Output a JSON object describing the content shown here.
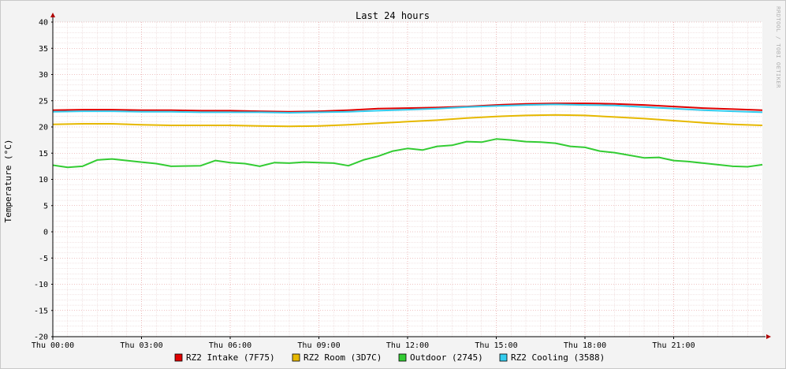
{
  "chart_data": {
    "type": "line",
    "title": "Last 24 hours",
    "ylabel": "Temperature (°C)",
    "watermark": "RRDTOOL / TOBI OETIKER",
    "ylim": [
      -20,
      40
    ],
    "yticks": [
      40,
      35,
      30,
      25,
      20,
      15,
      10,
      5,
      0,
      -5,
      -10,
      -15,
      -20
    ],
    "xlim": [
      0,
      24
    ],
    "xticks": [
      {
        "x": 0,
        "label": "Thu 00:00"
      },
      {
        "x": 3,
        "label": "Thu 03:00"
      },
      {
        "x": 6,
        "label": "Thu 06:00"
      },
      {
        "x": 9,
        "label": "Thu 09:00"
      },
      {
        "x": 12,
        "label": "Thu 12:00"
      },
      {
        "x": 15,
        "label": "Thu 15:00"
      },
      {
        "x": 18,
        "label": "Thu 18:00"
      },
      {
        "x": 21,
        "label": "Thu 21:00"
      }
    ],
    "grid": true,
    "legend_position": "bottom",
    "series": [
      {
        "name": "RZ2 Intake (7F75)",
        "color": "#e00000",
        "x": [
          0,
          1,
          2,
          3,
          4,
          5,
          6,
          7,
          8,
          9,
          10,
          11,
          12,
          13,
          14,
          15,
          16,
          17,
          18,
          19,
          20,
          21,
          22,
          23,
          24
        ],
        "values": [
          23.2,
          23.3,
          23.3,
          23.2,
          23.2,
          23.1,
          23.1,
          23.0,
          22.9,
          23.0,
          23.2,
          23.5,
          23.6,
          23.7,
          23.9,
          24.2,
          24.4,
          24.5,
          24.5,
          24.4,
          24.2,
          23.9,
          23.6,
          23.4,
          23.2
        ]
      },
      {
        "name": "RZ2 Room (3D7C)",
        "color": "#e6b800",
        "x": [
          0,
          1,
          2,
          3,
          4,
          5,
          6,
          7,
          8,
          9,
          10,
          11,
          12,
          13,
          14,
          15,
          16,
          17,
          18,
          19,
          20,
          21,
          22,
          23,
          24
        ],
        "values": [
          20.5,
          20.6,
          20.6,
          20.4,
          20.3,
          20.3,
          20.3,
          20.2,
          20.1,
          20.2,
          20.4,
          20.7,
          21.0,
          21.3,
          21.7,
          22.0,
          22.2,
          22.3,
          22.2,
          21.9,
          21.6,
          21.2,
          20.8,
          20.5,
          20.3
        ]
      },
      {
        "name": "Outdoor (2745)",
        "color": "#33cc33",
        "x": [
          0,
          0.5,
          1,
          1.5,
          2,
          2.5,
          3,
          3.5,
          4,
          5,
          5.5,
          6,
          6.5,
          7,
          7.5,
          8,
          8.5,
          9,
          9.5,
          10,
          10.5,
          11,
          11.5,
          12,
          12.5,
          13,
          13.5,
          14,
          14.5,
          15,
          15.5,
          16,
          16.5,
          17,
          17.5,
          18,
          18.5,
          19,
          19.5,
          20,
          20.5,
          21,
          21.5,
          22,
          22.5,
          23,
          23.5,
          24
        ],
        "values": [
          12.7,
          12.3,
          12.5,
          13.7,
          13.9,
          13.6,
          13.3,
          13.0,
          12.5,
          12.6,
          13.6,
          13.2,
          13.0,
          12.5,
          13.2,
          13.1,
          13.3,
          13.2,
          13.1,
          12.6,
          13.7,
          14.4,
          15.4,
          15.9,
          15.6,
          16.3,
          16.5,
          17.2,
          17.1,
          17.7,
          17.5,
          17.2,
          17.1,
          16.9,
          16.3,
          16.1,
          15.4,
          15.1,
          14.6,
          14.1,
          14.2,
          13.6,
          13.4,
          13.1,
          12.8,
          12.5,
          12.4,
          12.8
        ]
      },
      {
        "name": "RZ2 Cooling (3588)",
        "color": "#33ccee",
        "x": [
          0,
          1,
          2,
          3,
          4,
          5,
          6,
          7,
          8,
          9,
          10,
          11,
          12,
          13,
          14,
          15,
          16,
          17,
          18,
          19,
          20,
          21,
          22,
          23,
          24
        ],
        "values": [
          22.9,
          23.0,
          23.0,
          22.9,
          22.9,
          22.8,
          22.8,
          22.8,
          22.7,
          22.8,
          22.9,
          23.1,
          23.3,
          23.5,
          23.8,
          24.0,
          24.2,
          24.3,
          24.2,
          24.1,
          23.8,
          23.5,
          23.2,
          23.0,
          22.8
        ]
      }
    ]
  }
}
